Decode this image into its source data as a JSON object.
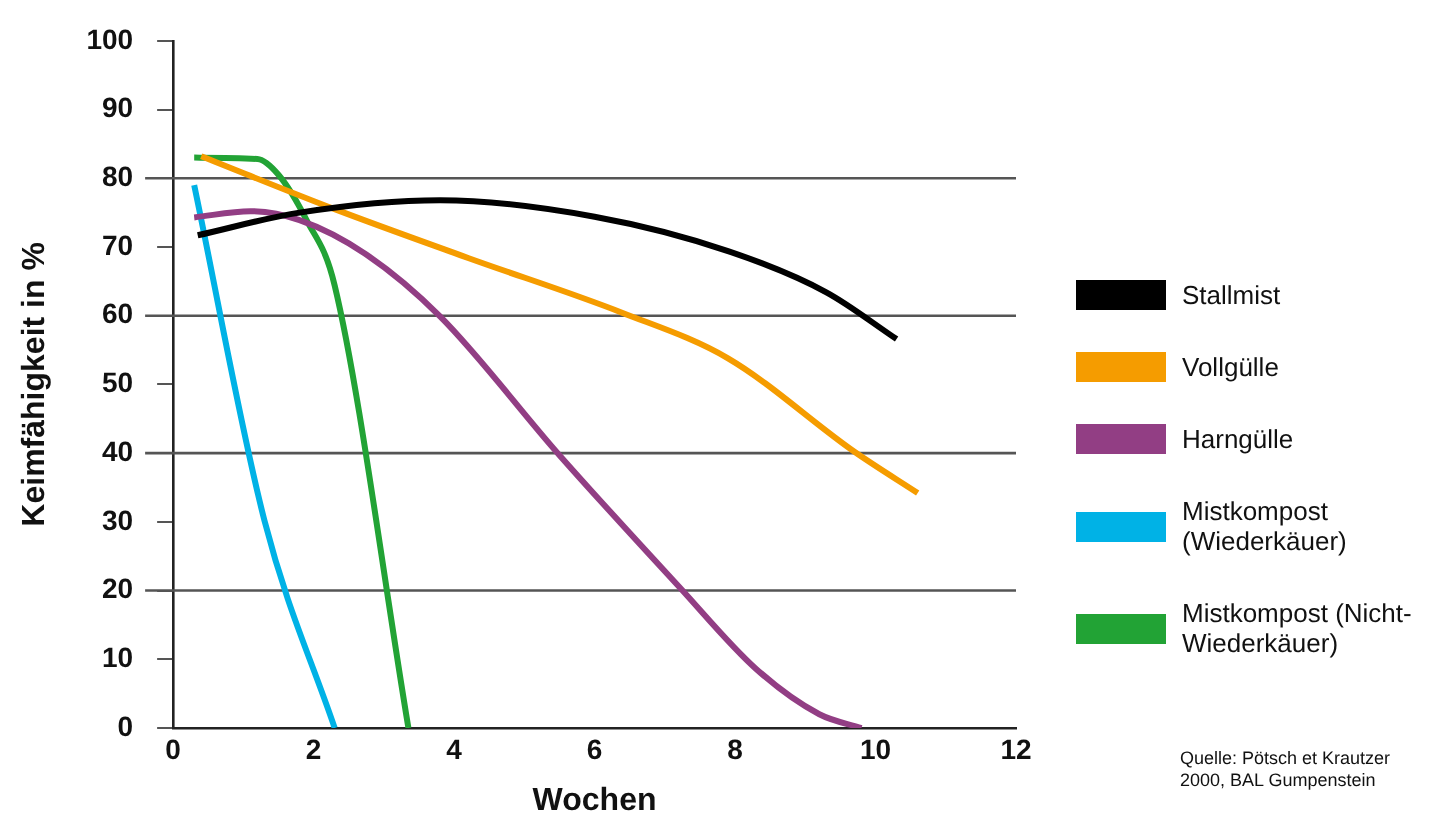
{
  "chart_data": {
    "type": "line",
    "xlabel": "Wochen",
    "ylabel": "Keimfähigkeit in %",
    "xlim": [
      0,
      12
    ],
    "xticks": [
      0,
      2,
      4,
      6,
      8,
      10,
      12
    ],
    "ylim": [
      0,
      100
    ],
    "yticks": [
      0,
      10,
      20,
      30,
      40,
      50,
      60,
      70,
      80,
      90,
      100
    ],
    "grid": false,
    "legend": "right",
    "marker": "none",
    "line_style": "solid",
    "ref_lines": [
      {
        "axis": "y",
        "value": 20,
        "color": "#555555"
      },
      {
        "axis": "y",
        "value": 40,
        "color": "#555555"
      },
      {
        "axis": "y",
        "value": 60,
        "color": "#555555"
      },
      {
        "axis": "y",
        "value": 80,
        "color": "#555555"
      }
    ],
    "annotations": [
      "Quelle: Pötsch et Krautzer 2000, BAL Gumpenstein"
    ],
    "series": [
      {
        "name": "Stallmist",
        "color": "#000000",
        "x": [
          0.35,
          1.8,
          3.8,
          6.0,
          7.9,
          9.3,
          10.3
        ],
        "values": [
          71.7,
          75,
          76.8,
          74.4,
          69.4,
          63.4,
          56.6
        ]
      },
      {
        "name": "Vollgülle",
        "color": "#f59c00",
        "x": [
          0.4,
          2.3,
          4.2,
          6.4,
          7.9,
          9.7,
          10.6
        ],
        "values": [
          83.2,
          75.5,
          68.4,
          60.4,
          53.8,
          40.2,
          34.2
        ]
      },
      {
        "name": "Harngülle",
        "color": "#923e84",
        "x": [
          0.3,
          1.1,
          1.8,
          2.75,
          3.8,
          5.5,
          7.2,
          8.3,
          9.2,
          9.8
        ],
        "values": [
          74.3,
          75.2,
          73.9,
          68.9,
          59.9,
          39.7,
          20.6,
          8.6,
          2,
          0
        ]
      },
      {
        "name": "Mistkompost (Wiederkäuer)",
        "color": "#00b2e6",
        "x": [
          0.3,
          1.3,
          2.3
        ],
        "values": [
          79,
          30.2,
          0
        ]
      },
      {
        "name": "Mistkompost (Nicht-Wiederkäuer)",
        "color": "#22a335",
        "x": [
          0.3,
          1.2,
          1.5,
          1.9,
          2.3,
          3.35
        ],
        "values": [
          83,
          82.8,
          80.5,
          73.9,
          64.4,
          0
        ]
      }
    ]
  }
}
